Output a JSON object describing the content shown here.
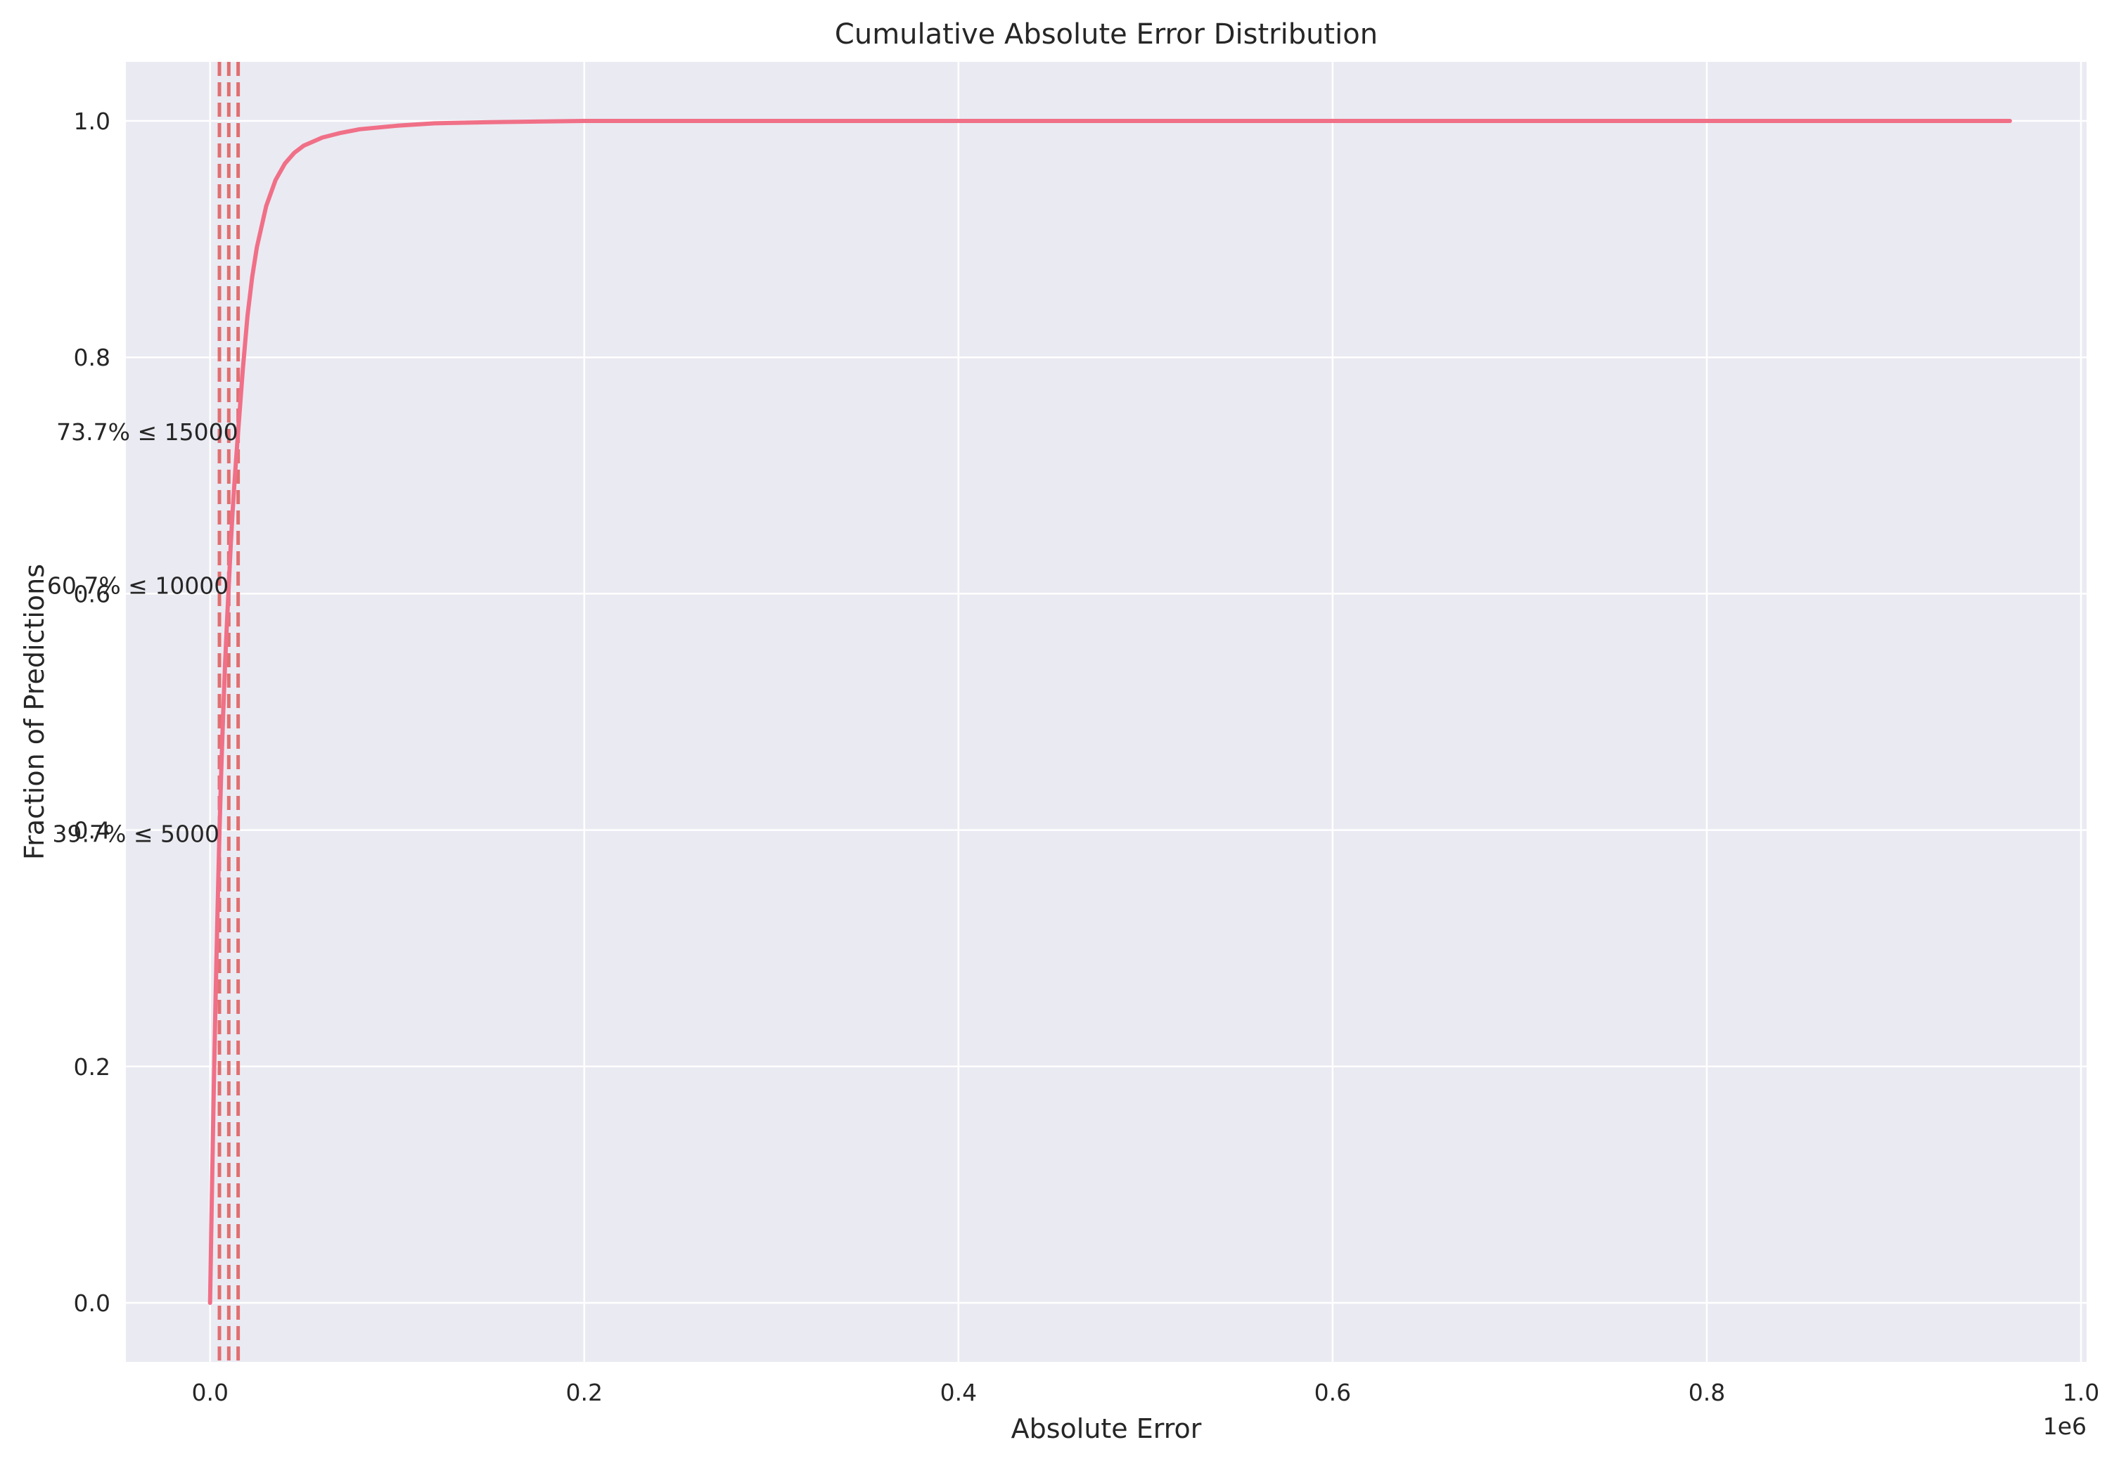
{
  "chart_data": {
    "type": "line",
    "title": "Cumulative Absolute Error Distribution",
    "xlabel": "Absolute Error",
    "ylabel": "Fraction of Predictions",
    "x_offset_label": "1e6",
    "xlim": [
      -45000,
      1003000
    ],
    "ylim": [
      -0.05,
      1.05
    ],
    "x_ticks": [
      0.0,
      0.2,
      0.4,
      0.6,
      0.8,
      1.0
    ],
    "x_tick_labels": [
      "0.0",
      "0.2",
      "0.4",
      "0.6",
      "0.8",
      "1.0"
    ],
    "y_ticks": [
      0.0,
      0.2,
      0.4,
      0.6,
      0.8,
      1.0
    ],
    "y_tick_labels": [
      "0.0",
      "0.2",
      "0.4",
      "0.6",
      "0.8",
      "1.0"
    ],
    "grid": true,
    "background": "#eaeaf2",
    "line_color": "#f07087",
    "threshold_color": "#e05a5a",
    "series": [
      {
        "x": [
          0,
          1000,
          2000,
          3000,
          4000,
          5000,
          6000,
          7000,
          8000,
          9000,
          10000,
          11000,
          12000,
          13000,
          14000,
          15000,
          17500,
          20000,
          22500,
          25000,
          30000,
          35000,
          40000,
          45000,
          50000,
          60000,
          70000,
          80000,
          100000,
          120000,
          150000,
          200000,
          300000,
          500000,
          700000,
          962000
        ],
        "y": [
          0.0,
          0.095,
          0.182,
          0.262,
          0.333,
          0.397,
          0.452,
          0.498,
          0.54,
          0.575,
          0.607,
          0.64,
          0.668,
          0.693,
          0.716,
          0.737,
          0.79,
          0.835,
          0.868,
          0.893,
          0.928,
          0.95,
          0.964,
          0.973,
          0.979,
          0.986,
          0.99,
          0.993,
          0.996,
          0.998,
          0.999,
          1.0,
          1.0,
          1.0,
          1.0,
          1.0
        ]
      }
    ],
    "thresholds": [
      {
        "x": 5000,
        "fraction": 0.397,
        "label": "39.7% ≤ 5000"
      },
      {
        "x": 10000,
        "fraction": 0.607,
        "label": "60.7% ≤ 10000"
      },
      {
        "x": 15000,
        "fraction": 0.737,
        "label": "73.7% ≤ 15000"
      }
    ]
  }
}
